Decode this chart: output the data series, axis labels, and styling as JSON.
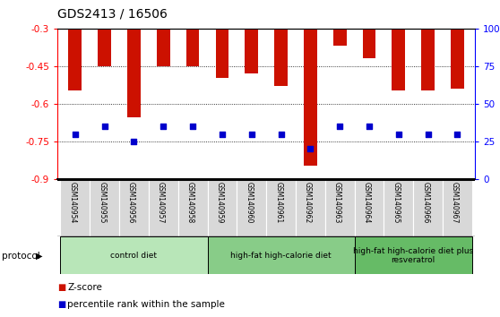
{
  "title": "GDS2413 / 16506",
  "samples": [
    "GSM140954",
    "GSM140955",
    "GSM140956",
    "GSM140957",
    "GSM140958",
    "GSM140959",
    "GSM140960",
    "GSM140961",
    "GSM140962",
    "GSM140963",
    "GSM140964",
    "GSM140965",
    "GSM140966",
    "GSM140967"
  ],
  "zscore": [
    -0.545,
    -0.45,
    -0.655,
    -0.45,
    -0.45,
    -0.495,
    -0.478,
    -0.53,
    -0.845,
    -0.37,
    -0.42,
    -0.545,
    -0.545,
    -0.54
  ],
  "percentile_pct": [
    30,
    35,
    25,
    35,
    35,
    30,
    30,
    30,
    20,
    35,
    35,
    30,
    30,
    30
  ],
  "bar_color": "#cc1100",
  "dot_color": "#0000cc",
  "ymin": -0.9,
  "ymax": -0.3,
  "yticks_left": [
    -0.9,
    -0.75,
    -0.6,
    -0.45,
    -0.3
  ],
  "ytick_labels_left": [
    "-0.9",
    "-0.75",
    "-0.6",
    "-0.45",
    "-0.3"
  ],
  "yticks_right": [
    0,
    25,
    50,
    75,
    100
  ],
  "ytick_labels_right": [
    "0",
    "25",
    "50",
    "75",
    "100%"
  ],
  "group_labels": [
    "control diet",
    "high-fat high-calorie diet",
    "high-fat high-calorie diet plus\nresveratrol"
  ],
  "group_starts": [
    0,
    5,
    10
  ],
  "group_ends": [
    5,
    10,
    14
  ],
  "group_colors": [
    "#b8e6b8",
    "#88cc88",
    "#66bb66"
  ],
  "protocol_label": "protocol",
  "legend_zscore": "Z-score",
  "legend_percentile": "percentile rank within the sample",
  "tick_bg_color": "#d8d8d8",
  "bar_width": 0.45
}
